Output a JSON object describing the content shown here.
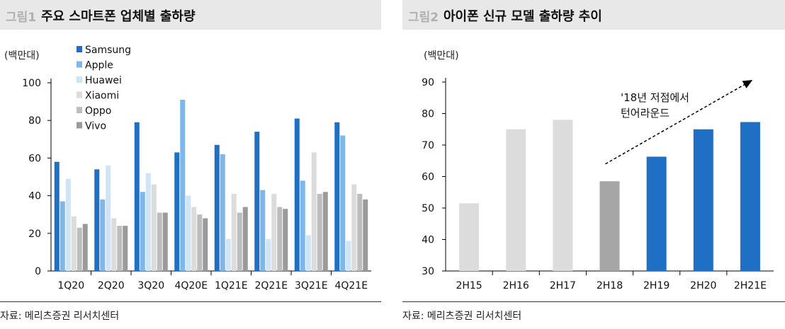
{
  "left": {
    "fig_num": "그림1",
    "title": "주요 스마트폰 업체별 출하량",
    "unit": "(백만대)",
    "source": "자료: 메리츠증권 리서치센터"
  },
  "right": {
    "fig_num": "그림2",
    "title": "아이폰 신규 모델 출하량 추이",
    "unit": "(백만대)",
    "source": "자료: 메리츠증권 리서치센터"
  },
  "chart_data": [
    {
      "type": "bar",
      "title": "주요 스마트폰 업체별 출하량",
      "ylabel": "(백만대)",
      "ylim": [
        0,
        100
      ],
      "yticks": [
        0,
        20,
        40,
        60,
        80,
        100
      ],
      "grid": false,
      "legend": "top-left",
      "categories": [
        "1Q20",
        "2Q20",
        "3Q20",
        "4Q20E",
        "1Q21E",
        "2Q21E",
        "3Q21E",
        "4Q21E"
      ],
      "series": [
        {
          "name": "Samsung",
          "color": "#1f6fc5",
          "values": [
            58,
            54,
            79,
            63,
            67,
            74,
            81,
            79
          ]
        },
        {
          "name": "Apple",
          "color": "#7fb7ea",
          "values": [
            37,
            38,
            42,
            91,
            62,
            43,
            48,
            72
          ]
        },
        {
          "name": "Huawei",
          "color": "#cfe4f7",
          "values": [
            49,
            56,
            52,
            40,
            17,
            17,
            19,
            16
          ]
        },
        {
          "name": "Xiaomi",
          "color": "#dcdcdc",
          "values": [
            29,
            28,
            46,
            34,
            41,
            41,
            63,
            46
          ]
        },
        {
          "name": "Oppo",
          "color": "#bdbdbd",
          "values": [
            23,
            24,
            31,
            30,
            31,
            34,
            41,
            41
          ]
        },
        {
          "name": "Vivo",
          "color": "#9a9a9a",
          "values": [
            25,
            24,
            31,
            28,
            34,
            33,
            42,
            38
          ]
        }
      ]
    },
    {
      "type": "bar",
      "title": "아이폰 신규 모델 출하량 추이",
      "ylabel": "(백만대)",
      "ylim": [
        30,
        90
      ],
      "yticks": [
        30,
        40,
        50,
        60,
        70,
        80,
        90
      ],
      "grid": false,
      "categories": [
        "2H15",
        "2H16",
        "2H17",
        "2H18",
        "2H19",
        "2H20",
        "2H21E"
      ],
      "values": [
        51.5,
        75,
        78,
        58.5,
        66.3,
        75,
        77.3
      ],
      "colors": [
        "#dcdcdc",
        "#dcdcdc",
        "#dcdcdc",
        "#a6a6a6",
        "#1f6fc5",
        "#1f6fc5",
        "#1f6fc5"
      ],
      "annotation": {
        "lines": [
          "'18년 저점에서",
          "턴어라운드"
        ],
        "arrow": "dashed, rising from 2H18 to 2H21E"
      }
    }
  ]
}
